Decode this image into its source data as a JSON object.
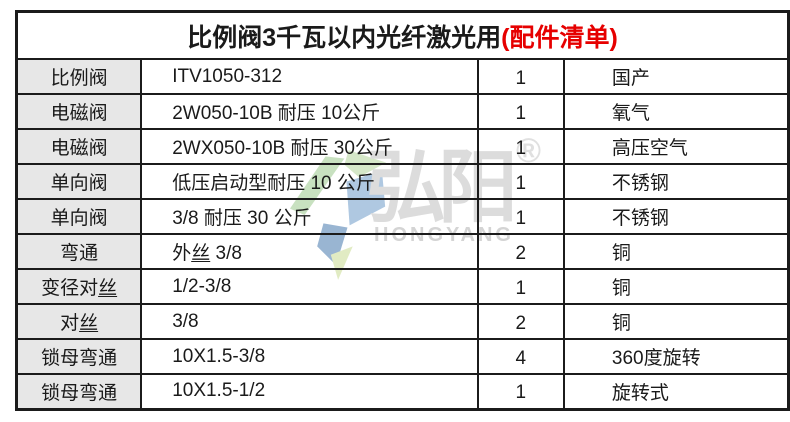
{
  "title": {
    "text_black": "比例阀3千瓦以内光纤激光用",
    "text_red": "(配件清单)",
    "red_color": "#e60000"
  },
  "watermark": {
    "logo_icon": "gem-logo",
    "brand_cn": "弘阳",
    "registered_mark": "®",
    "brand_en": "HONGYANG",
    "text_color": "#dcdcdc",
    "logo_colors": {
      "green": "#a8cf9a",
      "light_green": "#bcd9a8",
      "light_blue": "#7fa8d0",
      "dark_blue": "#5c88b8",
      "accent_yellow_green": "#cfe0a0"
    }
  },
  "table": {
    "grid_color": "#1b1b1b",
    "item_column_bg": "#e7e7e7",
    "rows": [
      {
        "item": "比例阀",
        "spec": "ITV1050-312",
        "qty": "1",
        "remark": "国产"
      },
      {
        "item": "电磁阀",
        "spec": "2W050-10B 耐压 10公斤",
        "qty": "1",
        "remark": "氧气"
      },
      {
        "item": "电磁阀",
        "spec": "2WX050-10B 耐压 30公斤",
        "qty": "1",
        "remark": "高压空气"
      },
      {
        "item": "单向阀",
        "spec": "低压启动型耐压 10 公斤",
        "qty": "1",
        "remark": "不锈钢"
      },
      {
        "item": "单向阀",
        "spec": "3/8 耐压 30 公斤",
        "qty": "1",
        "remark": "不锈钢"
      },
      {
        "item": "弯通",
        "spec": "外丝 3/8",
        "qty": "2",
        "remark": "铜"
      },
      {
        "item": "变径对丝",
        "spec": "1/2-3/8",
        "qty": "1",
        "remark": "铜"
      },
      {
        "item": "对丝",
        "spec": "3/8",
        "qty": "2",
        "remark": "铜"
      },
      {
        "item": "锁母弯通",
        "spec": "10X1.5-3/8",
        "qty": "4",
        "remark": "360度旋转"
      },
      {
        "item": "锁母弯通",
        "spec": "10X1.5-1/2",
        "qty": "1",
        "remark": "旋转式"
      }
    ]
  }
}
